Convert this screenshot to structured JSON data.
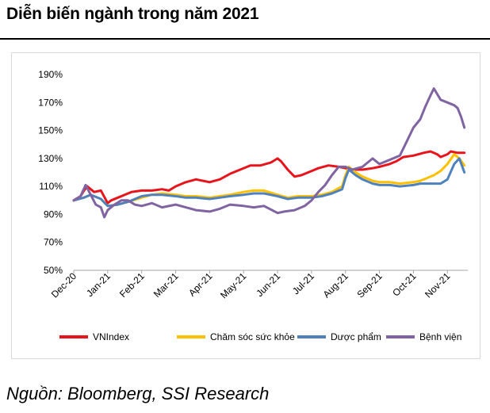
{
  "header": {
    "title": "Diễn biến ngành trong năm 2021"
  },
  "footer": {
    "source": "Nguồn: Bloomberg, SSI Research"
  },
  "chart_data": {
    "type": "line",
    "title": "Diễn biến ngành trong năm 2021",
    "xlabel": "",
    "ylabel": "",
    "ylim": [
      50,
      190
    ],
    "yticks": [
      50,
      70,
      90,
      110,
      130,
      150,
      170,
      190
    ],
    "ytick_labels": [
      "50%",
      "70%",
      "90%",
      "110%",
      "130%",
      "150%",
      "170%",
      "190%"
    ],
    "x_range": [
      0,
      11
    ],
    "x_tick_positions": [
      0,
      1,
      2,
      3,
      4,
      5,
      6,
      7,
      8,
      9,
      10,
      11
    ],
    "x_tick_labels": [
      "Dec-20",
      "Jan-21",
      "Feb-21",
      "Mar-21",
      "Apr-21",
      "May-21",
      "Jun-21",
      "Jul-21",
      "Aug-21",
      "Sep-21",
      "Oct-21",
      "Nov-21"
    ],
    "grid": false,
    "legend_position": "bottom",
    "series": [
      {
        "name": "VNIndex",
        "color": "#e8141c",
        "x": [
          0,
          0.2,
          0.3,
          0.4,
          0.5,
          0.6,
          0.8,
          1.0,
          1.1,
          1.3,
          1.5,
          1.7,
          2.0,
          2.3,
          2.6,
          2.8,
          3.0,
          3.3,
          3.6,
          4.0,
          4.3,
          4.6,
          4.9,
          5.2,
          5.5,
          5.8,
          6.0,
          6.1,
          6.3,
          6.5,
          6.7,
          7.0,
          7.2,
          7.5,
          7.8,
          8.0,
          8.2,
          8.5,
          8.8,
          9.0,
          9.3,
          9.5,
          9.7,
          10.0,
          10.3,
          10.5,
          10.7,
          10.8,
          11.0,
          11.1,
          11.3,
          11.5
        ],
        "values": [
          100,
          103,
          107,
          110,
          108,
          106,
          107,
          98,
          100,
          102,
          104,
          106,
          107,
          107,
          108,
          107,
          110,
          113,
          115,
          113,
          115,
          119,
          122,
          125,
          125,
          127,
          130,
          128,
          122,
          117,
          118,
          121,
          123,
          125,
          124,
          123,
          122,
          122,
          123,
          124,
          126,
          128,
          131,
          132,
          134,
          135,
          133,
          131,
          133,
          135,
          134,
          134
        ]
      },
      {
        "name": "Chăm sóc sức khỏe",
        "color": "#ffc000",
        "x": [
          0,
          0.3,
          0.5,
          0.8,
          1.0,
          1.3,
          1.6,
          2.0,
          2.3,
          2.6,
          3.0,
          3.3,
          3.6,
          4.0,
          4.3,
          4.6,
          5.0,
          5.3,
          5.6,
          6.0,
          6.3,
          6.6,
          7.0,
          7.3,
          7.6,
          7.9,
          8.0,
          8.1,
          8.3,
          8.5,
          8.8,
          9.0,
          9.3,
          9.6,
          10.0,
          10.2,
          10.4,
          10.6,
          10.8,
          11.0,
          11.2,
          11.35,
          11.5
        ],
        "values": [
          100,
          102,
          104,
          101,
          96,
          97,
          99,
          102,
          104,
          105,
          104,
          103,
          103,
          102,
          103,
          104,
          106,
          107,
          107,
          104,
          102,
          103,
          103,
          104,
          106,
          110,
          118,
          124,
          120,
          117,
          114,
          113,
          113,
          112,
          113,
          114,
          116,
          118,
          121,
          126,
          133,
          130,
          125
        ]
      },
      {
        "name": "Dược phẩm",
        "color": "#4f81bd",
        "x": [
          0,
          0.3,
          0.5,
          0.8,
          1.0,
          1.3,
          1.6,
          2.0,
          2.3,
          2.6,
          3.0,
          3.3,
          3.6,
          4.0,
          4.3,
          4.6,
          5.0,
          5.3,
          5.6,
          6.0,
          6.3,
          6.6,
          7.0,
          7.3,
          7.6,
          7.9,
          8.0,
          8.1,
          8.3,
          8.5,
          8.8,
          9.0,
          9.3,
          9.6,
          10.0,
          10.2,
          10.4,
          10.6,
          10.8,
          11.0,
          11.2,
          11.35,
          11.5
        ],
        "values": [
          100,
          102,
          104,
          101,
          96,
          97,
          99,
          103,
          104,
          104,
          103,
          102,
          102,
          101,
          102,
          103,
          104,
          105,
          105,
          103,
          101,
          102,
          102,
          103,
          105,
          108,
          116,
          122,
          118,
          115,
          112,
          111,
          111,
          110,
          111,
          112,
          112,
          112,
          112,
          115,
          126,
          130,
          120
        ]
      },
      {
        "name": "Bệnh viện",
        "color": "#8064a2",
        "x": [
          0,
          0.2,
          0.35,
          0.5,
          0.65,
          0.8,
          0.9,
          1.0,
          1.2,
          1.4,
          1.6,
          1.8,
          2.0,
          2.3,
          2.6,
          3.0,
          3.3,
          3.6,
          4.0,
          4.3,
          4.6,
          5.0,
          5.3,
          5.6,
          6.0,
          6.2,
          6.5,
          6.8,
          7.0,
          7.2,
          7.4,
          7.6,
          7.8,
          8.0,
          8.2,
          8.5,
          8.8,
          9.0,
          9.3,
          9.6,
          9.8,
          10.0,
          10.2,
          10.35,
          10.5,
          10.6,
          10.8,
          11.0,
          11.2,
          11.3,
          11.4,
          11.5
        ],
        "values": [
          100,
          103,
          111,
          104,
          97,
          95,
          88,
          93,
          97,
          100,
          100,
          97,
          96,
          98,
          95,
          97,
          95,
          93,
          92,
          94,
          97,
          96,
          95,
          96,
          91,
          92,
          93,
          96,
          100,
          106,
          111,
          118,
          124,
          124,
          122,
          124,
          130,
          126,
          129,
          132,
          142,
          152,
          158,
          167,
          175,
          180,
          172,
          170,
          168,
          166,
          160,
          152
        ]
      }
    ]
  }
}
